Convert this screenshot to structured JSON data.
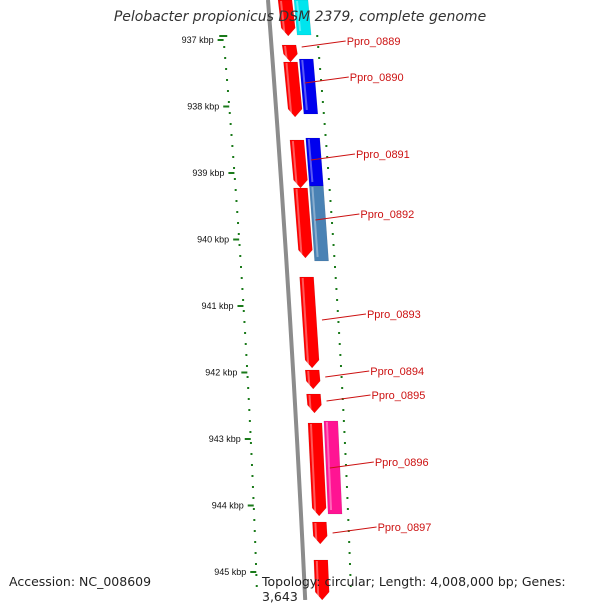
{
  "title": "Pelobacter propionicus DSM 2379, complete genome",
  "accession": "Accession: NC_008609",
  "topology": "Topology: circular; Length: 4,008,000 bp; Genes: 3,643",
  "colors": {
    "backbone": "#8c8c8c",
    "tick": "#1a7a1a",
    "label": "#cc1111",
    "cds_forward": "#ff0000",
    "cds_blue": "#0000ee",
    "cds_steelblue": "#4a82b4",
    "cds_pink": "#ff1493",
    "cds_cyan": "#00e5ee"
  },
  "ruler": [
    {
      "label": "937 kbp"
    },
    {
      "label": "938 kbp"
    },
    {
      "label": "939 kbp"
    },
    {
      "label": "940 kbp"
    },
    {
      "label": "941 kbp"
    },
    {
      "label": "942 kbp"
    },
    {
      "label": "943 kbp"
    },
    {
      "label": "944 kbp"
    },
    {
      "label": "945 kbp"
    }
  ],
  "gene_labels": [
    {
      "name": "Ppro_0889"
    },
    {
      "name": "Ppro_0890"
    },
    {
      "name": "Ppro_0891"
    },
    {
      "name": "Ppro_0892"
    },
    {
      "name": "Ppro_0893"
    },
    {
      "name": "Ppro_0894"
    },
    {
      "name": "Ppro_0895"
    },
    {
      "name": "Ppro_0896"
    },
    {
      "name": "Ppro_0897"
    }
  ]
}
